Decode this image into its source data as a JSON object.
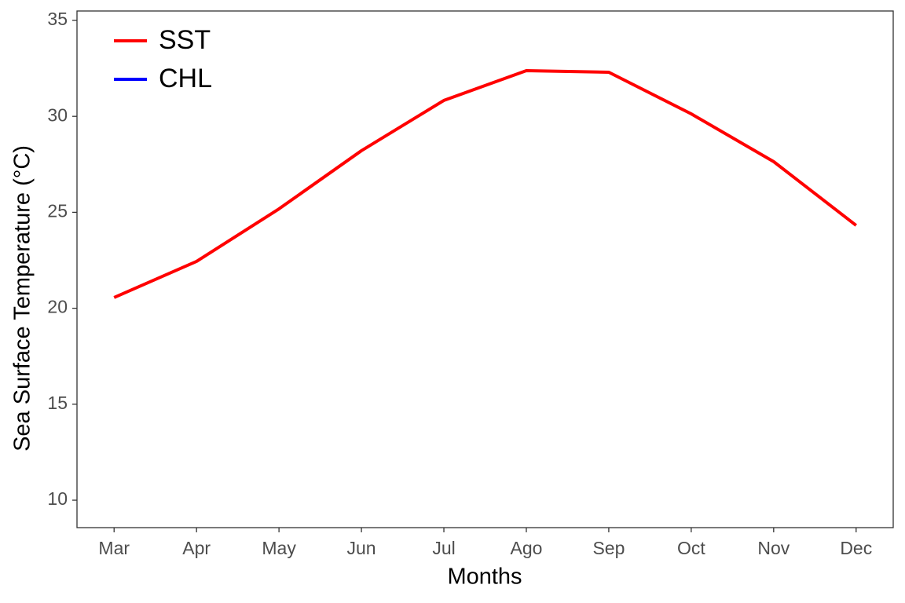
{
  "chart_data": {
    "type": "line",
    "x_label": "Months",
    "y_label": "Sea Surface Temperature (°C)",
    "categories": [
      "Mar",
      "Apr",
      "May",
      "Jun",
      "Jul",
      "Ago",
      "Sep",
      "Oct",
      "Nov",
      "Dec"
    ],
    "series": [
      {
        "name": "SST",
        "color": "#ff0000",
        "values": [
          20.56,
          22.44,
          25.18,
          28.21,
          30.83,
          32.38,
          32.3,
          30.13,
          27.64,
          24.32
        ]
      },
      {
        "name": "CHL",
        "color": "#0000ff",
        "values": [
          null,
          null,
          null,
          null,
          null,
          null,
          null,
          null,
          null,
          null
        ]
      }
    ],
    "ylim": [
      8.57,
      35.49
    ],
    "yticks": [
      10,
      15,
      20,
      25,
      30,
      35
    ],
    "grid": false,
    "legend": "top-left"
  }
}
